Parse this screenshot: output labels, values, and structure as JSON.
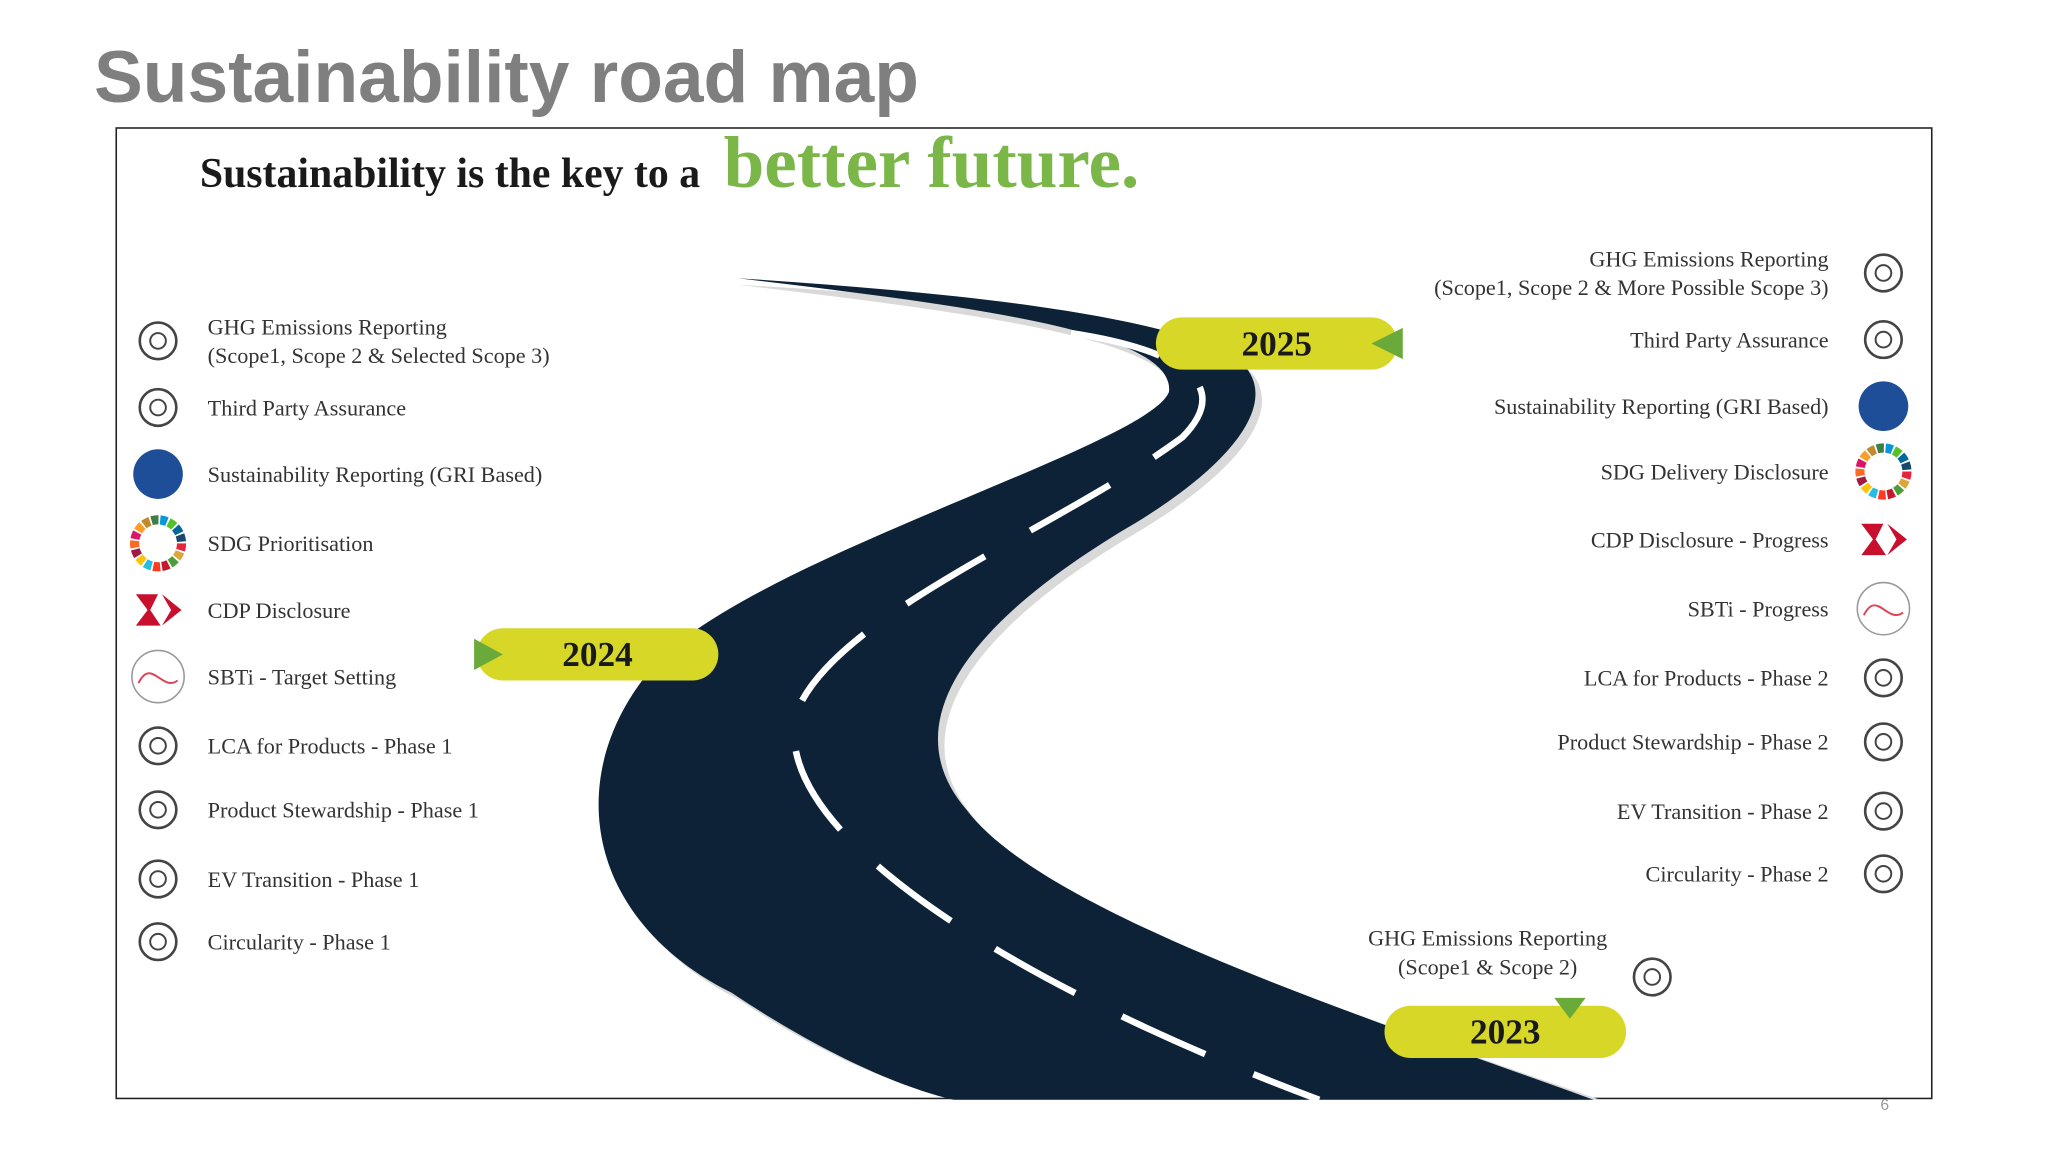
{
  "title": "Sustainability road map",
  "headline": {
    "lead": "Sustainability is the key to a",
    "emphasis": "better future."
  },
  "milestones": [
    {
      "year": "2024",
      "items": [
        {
          "lines": [
            "GHG Emissions Reporting",
            "(Scope1, Scope 2 & Selected Scope 3)"
          ]
        },
        {
          "lines": [
            "Third Party Assurance"
          ]
        },
        {
          "lines": [
            "Sustainability Reporting (GRI Based)"
          ]
        },
        {
          "lines": [
            "SDG Prioritisation"
          ]
        },
        {
          "lines": [
            "CDP Disclosure"
          ]
        },
        {
          "lines": [
            "SBTi - Target Setting"
          ]
        },
        {
          "lines": [
            "LCA for Products - Phase 1"
          ]
        },
        {
          "lines": [
            "Product Stewardship - Phase 1"
          ]
        },
        {
          "lines": [
            "EV Transition - Phase 1"
          ]
        },
        {
          "lines": [
            "Circularity - Phase 1"
          ]
        }
      ]
    },
    {
      "year": "2025",
      "items": [
        {
          "lines": [
            "GHG Emissions Reporting",
            "(Scope1, Scope 2 & More Possible Scope 3)"
          ]
        },
        {
          "lines": [
            "Third Party Assurance"
          ]
        },
        {
          "lines": [
            "Sustainability Reporting (GRI Based)"
          ]
        },
        {
          "lines": [
            "SDG Delivery Disclosure"
          ]
        },
        {
          "lines": [
            "CDP Disclosure - Progress"
          ]
        },
        {
          "lines": [
            "SBTi - Progress"
          ]
        },
        {
          "lines": [
            "LCA for Products - Phase 2"
          ]
        },
        {
          "lines": [
            "Product Stewardship - Phase 2"
          ]
        },
        {
          "lines": [
            "EV Transition - Phase 2"
          ]
        },
        {
          "lines": [
            "Circularity - Phase 2"
          ]
        }
      ]
    },
    {
      "year": "2023",
      "items": [
        {
          "lines": [
            "GHG Emissions Reporting",
            "(Scope1 & Scope 2)"
          ]
        }
      ]
    }
  ],
  "page_number": "6"
}
